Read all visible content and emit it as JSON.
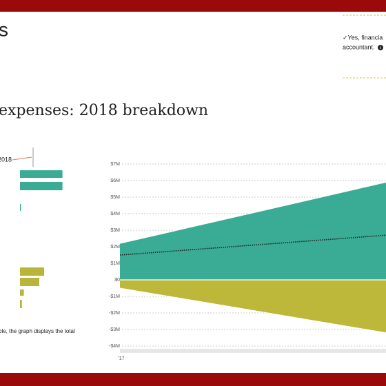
{
  "header": {
    "heading": "s",
    "title": "expenses: 2018 breakdown",
    "note": "ble, the graph displays the total",
    "callout": [
      "✓Yes, financia",
      "accountant."
    ]
  },
  "chart_data": [
    {
      "type": "hbar",
      "annotation": "2018",
      "values": [
        2.2,
        2.2,
        0.05,
        1.25,
        1.0,
        0.2,
        0.1
      ],
      "colors": [
        "#3aab94",
        "#3aab94",
        "#3aab94",
        "#b9b53a",
        "#b9b53a",
        "#b9b53a",
        "#b9b53a"
      ]
    },
    {
      "type": "area",
      "x": [
        "'17",
        null
      ],
      "series": [
        {
          "color": "#3aab94",
          "values": [
            2.2,
            5.9
          ]
        },
        {
          "color": "#bdb83a",
          "values": [
            -0.5,
            -3.2
          ]
        },
        {
          "color": "#222222",
          "style": "dotted",
          "values": [
            1.5,
            2.7
          ]
        }
      ],
      "ylim": [
        -4,
        7
      ],
      "yticks": [
        {
          "value": 7,
          "label": "$7M"
        },
        {
          "value": 6,
          "label": "$6M"
        },
        {
          "value": 5,
          "label": "$5M"
        },
        {
          "value": 4,
          "label": "$4M"
        },
        {
          "value": 3,
          "label": "$3M"
        },
        {
          "value": 2,
          "label": "$2M"
        },
        {
          "value": 1,
          "label": "$1M"
        },
        {
          "value": 0,
          "label": "$0"
        },
        {
          "value": -1,
          "label": "-$1M"
        },
        {
          "value": -2,
          "label": "-$2M"
        },
        {
          "value": -3,
          "label": "-$3M"
        },
        {
          "value": -4,
          "label": "-$4M"
        }
      ],
      "grid": true
    }
  ]
}
